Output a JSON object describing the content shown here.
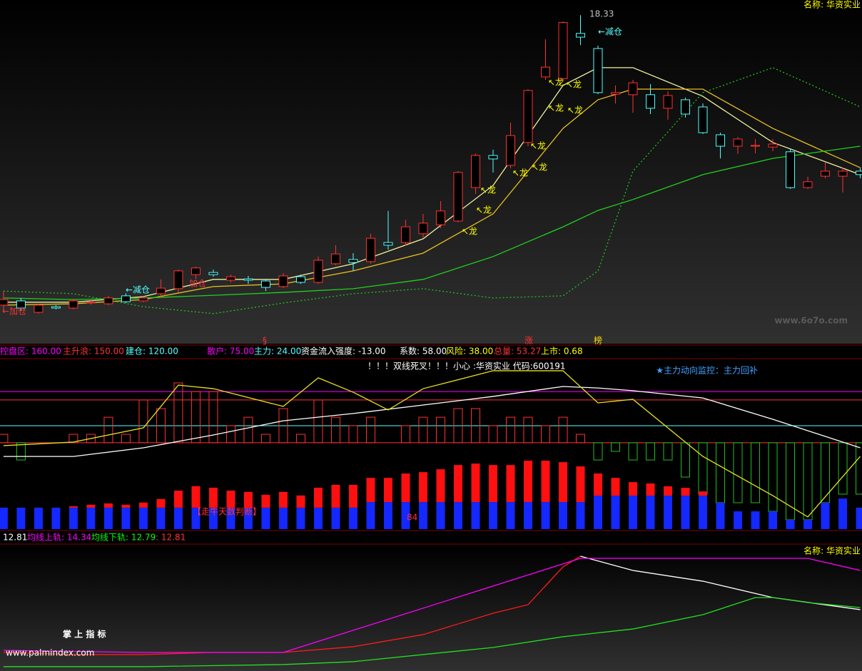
{
  "chart_data": [
    {
      "type": "candlestick",
      "title": "名称: 华资实业",
      "high_label": "18.33",
      "watermark": "www.6o7o.com",
      "xlim": [
        -0.2,
        49.1
      ],
      "ylim": [
        6.0,
        18.9
      ],
      "up_color": "#ff3232",
      "down_color": "#54ffff",
      "open": [
        7.4,
        7.56,
        7.13,
        7.34,
        7.29,
        7.51,
        7.45,
        7.75,
        7.56,
        7.83,
        8.02,
        8.55,
        8.63,
        8.34,
        8.39,
        8.31,
        8.1,
        8.47,
        8.26,
        8.96,
        9.12,
        9.04,
        9.76,
        9.76,
        10.09,
        10.43,
        10.57,
        11.83,
        13.04,
        12.67,
        13.53,
        16.0,
        15.94,
        17.64,
        17.07,
        15.35,
        15.33,
        15.33,
        14.82,
        15.14,
        14.87,
        13.82,
        13.39,
        13.39,
        13.36,
        13.18,
        11.83,
        12.26,
        12.26,
        12.45
      ],
      "high": [
        7.93,
        7.67,
        7.45,
        7.4,
        7.64,
        7.61,
        7.75,
        7.85,
        7.72,
        8.37,
        8.74,
        8.85,
        8.74,
        8.55,
        8.5,
        8.37,
        8.61,
        8.55,
        9.23,
        9.66,
        9.36,
        10.09,
        10.95,
        10.62,
        10.84,
        11.32,
        12.45,
        13.12,
        13.26,
        14.28,
        15.54,
        17.42,
        18.1,
        18.33,
        17.18,
        15.68,
        15.89,
        15.73,
        15.46,
        15.22,
        15.0,
        13.9,
        13.74,
        13.66,
        13.66,
        13.31,
        12.24,
        12.77,
        12.58,
        12.58
      ],
      "low": [
        7.21,
        7.18,
        7.08,
        7.24,
        7.24,
        7.42,
        7.4,
        7.48,
        7.51,
        7.67,
        7.88,
        8.37,
        8.47,
        8.26,
        8.2,
        7.93,
        8.04,
        8.2,
        8.2,
        8.9,
        8.69,
        8.96,
        9.49,
        9.63,
        9.95,
        10.3,
        10.52,
        11.59,
        12.4,
        12.56,
        13.39,
        15.89,
        15.81,
        17.2,
        15.35,
        15.0,
        14.65,
        14.6,
        14.39,
        14.47,
        13.85,
        12.93,
        13.1,
        13.12,
        13.2,
        11.78,
        11.78,
        12.18,
        11.64,
        12.18
      ],
      "close": [
        7.61,
        7.29,
        7.4,
        7.29,
        7.56,
        7.51,
        7.67,
        7.53,
        7.67,
        8.04,
        8.69,
        8.8,
        8.55,
        8.47,
        8.34,
        8.07,
        8.5,
        8.26,
        9.09,
        9.33,
        9.01,
        9.92,
        9.66,
        10.35,
        10.49,
        10.95,
        12.4,
        13.04,
        12.91,
        13.79,
        15.49,
        16.37,
        18.05,
        17.5,
        15.41,
        15.41,
        15.78,
        14.82,
        15.3,
        14.6,
        13.9,
        13.39,
        13.66,
        13.42,
        13.47,
        11.83,
        12.05,
        12.45,
        12.45,
        12.32
      ],
      "series": [
        {
          "color": "#f0f0a0",
          "x": [
            0,
            4,
            8,
            12,
            16,
            20,
            24,
            28,
            32,
            34,
            36,
            40,
            44,
            49
          ],
          "values": [
            7.51,
            7.51,
            7.72,
            8.37,
            8.37,
            8.96,
            9.9,
            11.91,
            15.68,
            16.35,
            16.35,
            15.27,
            13.53,
            12.32
          ]
        },
        {
          "color": "#e8c020",
          "x": [
            0,
            4,
            8,
            12,
            16,
            20,
            24,
            28,
            32,
            34,
            36,
            40,
            44,
            49
          ],
          "values": [
            7.4,
            7.45,
            7.61,
            8.1,
            8.2,
            8.69,
            9.36,
            10.84,
            14.06,
            15.14,
            15.54,
            15.54,
            14.06,
            12.58
          ]
        },
        {
          "color": "#20d020",
          "x": [
            0,
            4,
            8,
            12,
            16,
            20,
            24,
            28,
            32,
            34,
            36,
            40,
            44,
            49
          ],
          "values": [
            7.67,
            7.61,
            7.67,
            7.77,
            7.88,
            8.02,
            8.37,
            9.23,
            10.35,
            10.97,
            11.38,
            12.32,
            12.93,
            13.39
          ]
        },
        {
          "color": "#20c020",
          "dash": true,
          "x": [
            0,
            4,
            8,
            12,
            16,
            20,
            24,
            28,
            32,
            34,
            36,
            40,
            44,
            49
          ],
          "values": [
            7.93,
            7.83,
            7.34,
            7.08,
            7.48,
            7.83,
            8.02,
            7.67,
            7.75,
            8.69,
            12.45,
            15.41,
            16.35,
            14.87
          ]
        }
      ],
      "annotations": [
        {
          "text": "←减仓",
          "color": "#54ffff"
        },
        {
          "text": "←减仓",
          "color": "#54ffff"
        },
        {
          "text": "←加仓",
          "color": "#ff3232"
        },
        {
          "text": "加仓",
          "color": "#ff3232"
        },
        {
          "text": "↖龙",
          "color": "#ffff00"
        },
        {
          "text": "↖龙",
          "color": "#ffff00"
        },
        {
          "text": "↖龙",
          "color": "#ffff00"
        },
        {
          "text": "↖龙",
          "color": "#ffff00"
        },
        {
          "text": "↖龙",
          "color": "#ffff00"
        },
        {
          "text": "↖龙",
          "color": "#ffff00"
        },
        {
          "text": "↖龙",
          "color": "#ffff00"
        },
        {
          "text": "↖龙",
          "color": "#ffff00"
        },
        {
          "text": "↖龙",
          "color": "#ffff00"
        },
        {
          "text": "↖龙",
          "color": "#ffff00"
        },
        {
          "text": "§",
          "color": "#ff3232"
        },
        {
          "text": "涨",
          "color": "#ff3232"
        },
        {
          "text": "榜",
          "color": "#ffd700"
        }
      ],
      "stats": [
        {
          "text": "控盘区: 160.00",
          "color": "#ff00ff"
        },
        {
          "text": "主升浪: 150.00",
          "color": "#ff3232"
        },
        {
          "text": "建仓: 120.00",
          "color": "#54ffff"
        },
        {
          "text": "散户: 75.00",
          "color": "#ff00ff"
        },
        {
          "text": "主力: 24.00",
          "color": "#54ffff"
        },
        {
          "text": "资金流入强度: -13.00",
          "color": "#ffffff"
        },
        {
          "text": "系数: 58.00",
          "color": "#ffffff"
        },
        {
          "text": "风险: 38.00",
          "color": "#ffff00"
        },
        {
          "text": "总量: 53.27",
          "color": "#ff3232"
        },
        {
          "text": "上市: 0.68",
          "color": "#ffff00"
        }
      ]
    },
    {
      "type": "indicator",
      "title": "！！！双线死叉！！！小心   :华资实业 代码:600191",
      "subtitle": "★主力动向监控：主力回补",
      "annotations": [
        "【走牛天数判断】",
        "84"
      ],
      "xlim": [
        -0.2,
        49.1
      ],
      "ylim": [
        0,
        100
      ],
      "levels": [
        {
          "value": 81.4,
          "color": "#ff00ff"
        },
        {
          "value": 76.4,
          "color": "#ff3232"
        },
        {
          "value": 61.2,
          "color": "#54ffff"
        },
        {
          "value": 51.1,
          "color": "#ff3232"
        }
      ],
      "osc": [
        56.1,
        40.9,
        null,
        null,
        56.1,
        56.1,
        66.2,
        56.1,
        76.4,
        71.3,
        86.5,
        81.4,
        81.4,
        61.2,
        66.2,
        56.1,
        71.3,
        56.1,
        76.4,
        66.2,
        61.2,
        66.2,
        null,
        61.2,
        66.2,
        66.2,
        71.3,
        71.3,
        61.2,
        66.2,
        66.2,
        61.2,
        66.2,
        56.1,
        40.9,
        46.0,
        40.9,
        40.9,
        40.9,
        30.8,
        20.7,
        15.6,
        15.6,
        15.6,
        10.5,
        5.5,
        5.5,
        15.6,
        20.7,
        20.7
      ],
      "bars": [
        {
          "color": "#1428ff",
          "values": [
            12.7,
            12.7,
            12.7,
            12.7,
            12.7,
            12.7,
            12.7,
            12.7,
            12.7,
            12.7,
            12.7,
            12.7,
            12.7,
            12.7,
            12.7,
            12.7,
            12.7,
            12.7,
            12.7,
            12.7,
            12.7,
            16.0,
            16.0,
            16.0,
            16.0,
            16.0,
            16.0,
            16.0,
            16.0,
            16.0,
            16.0,
            16.0,
            16.0,
            16.0,
            19.8,
            19.8,
            19.8,
            19.8,
            19.8,
            19.8,
            19.8,
            15.6,
            10.5,
            10.5,
            10.5,
            5.5,
            5.5,
            15.6,
            18.1,
            12.7
          ]
        },
        {
          "color": "#ff1010",
          "values": [
            null,
            null,
            null,
            null,
            0.8,
            1.7,
            2.5,
            1.7,
            3.0,
            5.1,
            10.1,
            12.7,
            11.8,
            10.1,
            9.3,
            7.6,
            9.3,
            7.2,
            11.8,
            13.5,
            13.5,
            14.3,
            14.3,
            16.9,
            17.7,
            19.4,
            21.9,
            22.8,
            21.9,
            21.9,
            24.5,
            24.5,
            23.6,
            21.1,
            13.1,
            10.5,
            8.0,
            7.2,
            5.5,
            4.6,
            2.5,
            null,
            null,
            null,
            null,
            null,
            null,
            null,
            null,
            null
          ]
        }
      ],
      "series": [
        {
          "color": "#ffffff",
          "x": [
            0,
            4,
            8,
            12,
            16,
            20,
            24,
            28,
            32,
            34,
            36,
            40,
            44,
            49
          ],
          "values": [
            43.0,
            43.0,
            48.1,
            55.7,
            64.1,
            68.4,
            73.4,
            78.5,
            84.4,
            83.5,
            81.9,
            77.6,
            65.0,
            48.1
          ]
        },
        {
          "color": "#e8e020",
          "x": [
            0,
            4,
            8,
            10,
            12,
            16,
            18,
            20,
            22,
            24,
            28,
            32,
            34,
            36,
            40,
            44,
            46,
            49
          ],
          "values": [
            49.4,
            51.5,
            59.9,
            85.2,
            83.1,
            72.6,
            89.5,
            81.0,
            70.5,
            83.1,
            93.7,
            93.7,
            74.7,
            76.8,
            43.0,
            19.8,
            7.2,
            43.0
          ]
        }
      ],
      "stats": [
        {
          "text": "12.81",
          "color": "#ffffff"
        },
        {
          "text": "均线上轨: 14.34",
          "color": "#ff00ff"
        },
        {
          "text": "均线下轨: 12.79",
          "color": "#00ff00"
        },
        {
          "text": ": 12.81",
          "color": "#ff3232"
        }
      ]
    },
    {
      "type": "line",
      "title": "名称: 华资实业",
      "watermark": "掌 上 指 标",
      "watermark2": "www.palmindex.com",
      "xlim": [
        -0.2,
        49.1
      ],
      "ylim": [
        0,
        100
      ],
      "series": [
        {
          "color": "#ff1a1a",
          "x": [
            0,
            4,
            8,
            12,
            16,
            20,
            24,
            28,
            30,
            32,
            33
          ],
          "values": [
            14.3,
            12.6,
            12.6,
            14.3,
            14.3,
            18.9,
            28.6,
            45.7,
            52.6,
            82.9,
            91.4
          ]
        },
        {
          "color": "#ffffff",
          "x": [
            33,
            36,
            40,
            44,
            49
          ],
          "values": [
            91.4,
            80.0,
            71.4,
            58.3,
            48.6
          ]
        },
        {
          "color": "#20e020",
          "x": [
            0,
            8,
            16,
            20,
            24,
            28,
            32,
            36,
            40,
            43,
            44,
            46,
            49
          ],
          "values": [
            2.9,
            2.9,
            4.6,
            6.9,
            12.6,
            18.3,
            26.9,
            33.1,
            44.6,
            58.3,
            58.3,
            54.3,
            50.3
          ]
        },
        {
          "color": "#ff00ff",
          "x": [
            0,
            8,
            16,
            33,
            46,
            49
          ],
          "values": [
            16.0,
            14.3,
            14.3,
            89.7,
            89.7,
            80.0
          ]
        }
      ]
    }
  ]
}
